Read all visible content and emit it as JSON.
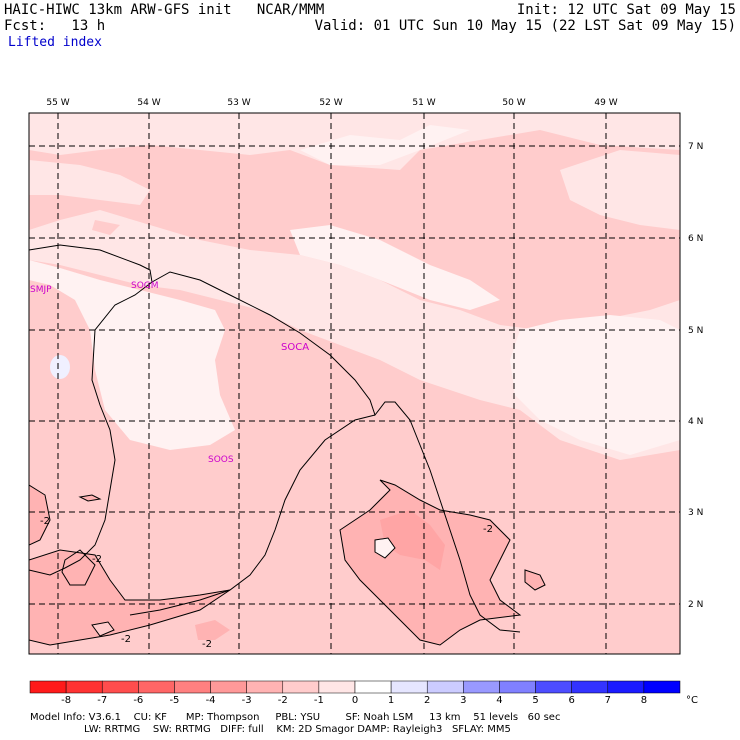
{
  "header": {
    "left_line1": "HAIC-HIWC 13km ARW-GFS init   NCAR/MMM",
    "left_line2": "Fcst:   13 h",
    "field_name": "Lifted index",
    "right_line1": "Init: 12 UTC Sat 09 May 15",
    "right_line2": "Valid: 01 UTC Sun 10 May 15 (22 LST Sat 09 May 15)"
  },
  "map": {
    "lon_labels": [
      "55 W",
      "54 W",
      "53 W",
      "52 W",
      "51 W",
      "50 W",
      "49 W"
    ],
    "lat_labels": [
      "7 N",
      "6 N",
      "5 N",
      "4 N",
      "3 N",
      "2 N"
    ],
    "stations": [
      "SMJP",
      "SOGM",
      "SOCA",
      "SOOS"
    ],
    "contour_labels": [
      "-2",
      "-2",
      "-2",
      "-2",
      "-2"
    ]
  },
  "colorbar": {
    "values": [
      "-8",
      "-7",
      "-6",
      "-5",
      "-4",
      "-3",
      "-2",
      "-1",
      "0",
      "1",
      "2",
      "3",
      "4",
      "5",
      "6",
      "7",
      "8"
    ],
    "unit": "°C",
    "colors": [
      "#ff1a1a",
      "#ff3333",
      "#ff4d4d",
      "#ff6666",
      "#ff8080",
      "#ff9999",
      "#ffb3b3",
      "#ffcccc",
      "#ffe6e6",
      "#ffffff",
      "#e6e6ff",
      "#ccccff",
      "#9999ff",
      "#8080ff",
      "#4d4dff",
      "#3333ff",
      "#1a1aff",
      "#0000ff"
    ]
  },
  "footer": {
    "line1": "Model Info: V3.6.1    CU: KF      MP: Thompson     PBL: YSU        SF: Noah LSM     13 km    51 levels   60 sec",
    "line2": "                 LW: RRTMG    SW: RRTMG   DIFF: full    KM: 2D Smagor DAMP: Rayleigh3   SFLAY: MM5"
  }
}
